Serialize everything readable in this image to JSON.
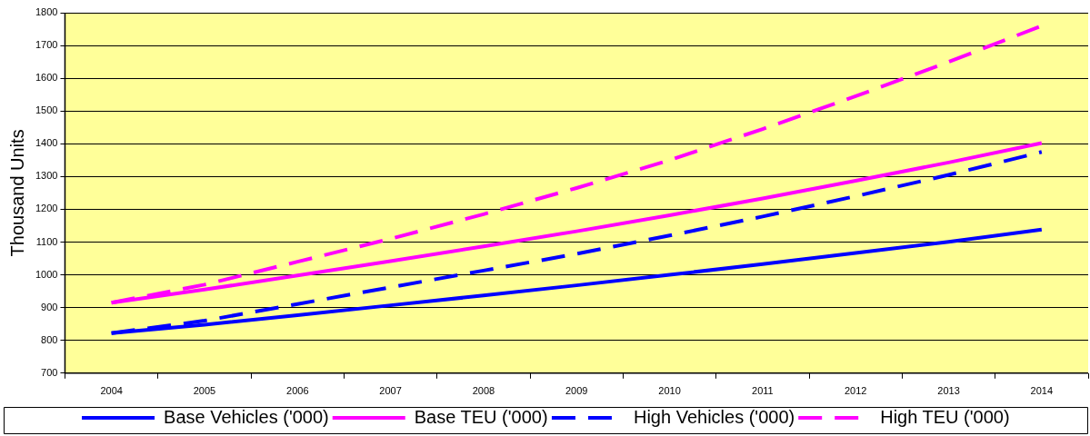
{
  "chart_data": {
    "type": "line",
    "ylabel": "Thousand Units",
    "categories": [
      "2004",
      "2005",
      "2006",
      "2007",
      "2008",
      "2009",
      "2010",
      "2011",
      "2012",
      "2013",
      "2014"
    ],
    "series": [
      {
        "name": "Base Vehicles ('000)",
        "color": "#0000ff",
        "line_style": "solid",
        "values": [
          822,
          848,
          877,
          907,
          937,
          968,
          1000,
          1033,
          1067,
          1101,
          1138
        ]
      },
      {
        "name": "Base TEU ('000)",
        "color": "#ff00ff",
        "line_style": "solid",
        "values": [
          915,
          955,
          998,
          1042,
          1087,
          1133,
          1182,
          1233,
          1287,
          1343,
          1402
        ]
      },
      {
        "name": "High Vehicles ('000)",
        "color": "#0000ff",
        "line_style": "dashed",
        "values": [
          822,
          860,
          911,
          962,
          1013,
          1064,
          1120,
          1178,
          1240,
          1305,
          1375
        ]
      },
      {
        "name": "High TEU ('000)",
        "color": "#ff00ff",
        "line_style": "dashed",
        "values": [
          915,
          970,
          1040,
          1110,
          1185,
          1265,
          1350,
          1445,
          1545,
          1650,
          1760
        ]
      }
    ],
    "ylim": [
      700,
      1800
    ],
    "yticks": [
      700,
      800,
      900,
      1000,
      1100,
      1200,
      1300,
      1400,
      1500,
      1600,
      1700,
      1800
    ],
    "grid": "y",
    "legend": "bottom",
    "marker": "none"
  }
}
